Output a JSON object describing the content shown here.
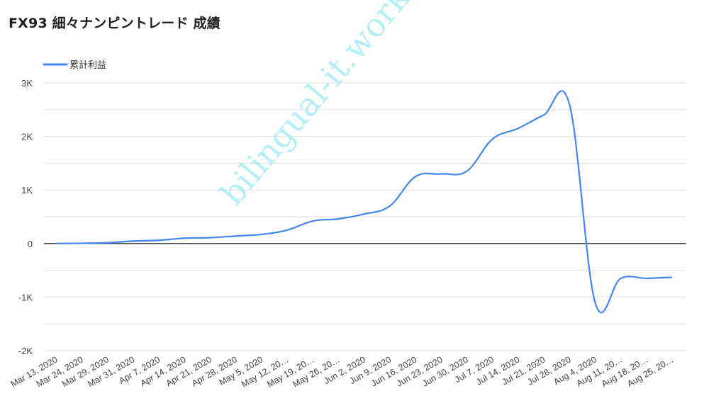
{
  "title": "FX93 細々ナンピントレード 成績",
  "watermark": "bilingual-it.work",
  "chart_data": {
    "type": "line",
    "title": "FX93 細々ナンピントレード 成績",
    "legend": "top-left",
    "series": [
      {
        "name": "累計利益",
        "color": "#4285f4",
        "values": [
          0,
          5,
          15,
          45,
          60,
          100,
          110,
          140,
          170,
          250,
          420,
          460,
          550,
          700,
          1250,
          1300,
          1350,
          1950,
          2150,
          2400,
          2600,
          -1100,
          -650,
          -650,
          -630
        ]
      }
    ],
    "categories": [
      "Mar 13, 2020",
      "Mar 24, 2020",
      "Mar 29, 2020",
      "Mar 31, 2020",
      "Apr 7, 2020",
      "Apr 14, 2020",
      "Apr 21, 2020",
      "Apr 28, 2020",
      "May 5, 2020",
      "May 12, 20…",
      "May 19, 20…",
      "May 26, 20…",
      "Jun 2, 2020",
      "Jun 9, 2020",
      "Jun 16, 2020",
      "Jun 23, 2020",
      "Jun 30, 2020",
      "Jul 7, 2020",
      "Jul 14, 2020",
      "Jul 21, 2020",
      "Jul 28, 2020",
      "Aug 4, 2020",
      "Aug 11, 20…",
      "Aug 18, 20…",
      "Aug 25, 20…"
    ],
    "y_ticks": [
      "3K",
      "2K",
      "1K",
      "0",
      "-1K",
      "-2K"
    ],
    "y_tick_values": [
      3000,
      2000,
      1000,
      0,
      -1000,
      -2000
    ],
    "ylim": [
      -2000,
      3000
    ],
    "grid": true,
    "zero_line": true,
    "gridline_color": "#e0e0e0",
    "zero_line_color": "#333333"
  }
}
